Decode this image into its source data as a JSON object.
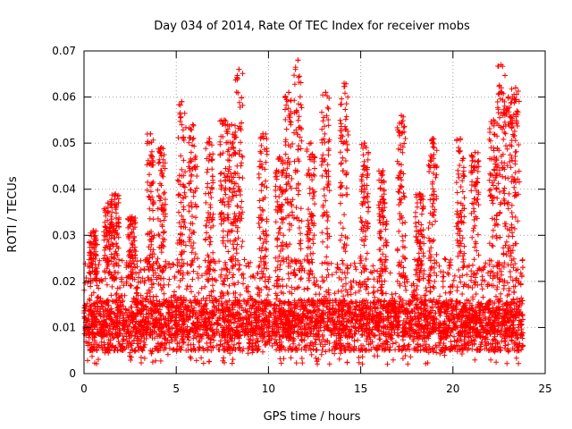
{
  "chart_data": {
    "type": "scatter",
    "title": "Day 034 of 2014, Rate Of TEC Index for receiver mobs",
    "xlabel": "GPS time / hours",
    "ylabel": "ROTI / TECUs",
    "xlim": [
      0,
      25
    ],
    "ylim": [
      0,
      0.07
    ],
    "xticks": [
      0,
      5,
      10,
      15,
      20,
      25
    ],
    "xtick_labels": [
      "0",
      "5",
      "10",
      "15",
      "20",
      "25"
    ],
    "yticks": [
      0,
      0.01,
      0.02,
      0.03,
      0.04,
      0.05,
      0.06,
      0.07
    ],
    "ytick_labels": [
      "0",
      "0.01",
      "0.02",
      "0.03",
      "0.04",
      "0.05",
      "0.06",
      "0.07"
    ],
    "grid": true,
    "marker": "+",
    "colors": {
      "series": "#ff0000",
      "grid": "#a0a0a0",
      "axis": "#000000"
    },
    "series": [
      {
        "name": "ROTI",
        "x_range": [
          0,
          23.8
        ],
        "baseline_range": [
          0.005,
          0.025
        ],
        "typical_value": 0.012,
        "spikes": [
          {
            "x": 0.5,
            "y": 0.031
          },
          {
            "x": 1.3,
            "y": 0.037
          },
          {
            "x": 1.7,
            "y": 0.039
          },
          {
            "x": 2.6,
            "y": 0.034
          },
          {
            "x": 3.6,
            "y": 0.052
          },
          {
            "x": 4.2,
            "y": 0.049
          },
          {
            "x": 5.3,
            "y": 0.059
          },
          {
            "x": 5.9,
            "y": 0.054
          },
          {
            "x": 6.8,
            "y": 0.051
          },
          {
            "x": 7.6,
            "y": 0.055
          },
          {
            "x": 8.0,
            "y": 0.054
          },
          {
            "x": 8.4,
            "y": 0.066
          },
          {
            "x": 9.7,
            "y": 0.052
          },
          {
            "x": 10.6,
            "y": 0.047
          },
          {
            "x": 11.1,
            "y": 0.061
          },
          {
            "x": 11.6,
            "y": 0.068
          },
          {
            "x": 12.3,
            "y": 0.05
          },
          {
            "x": 13.1,
            "y": 0.061
          },
          {
            "x": 14.1,
            "y": 0.063
          },
          {
            "x": 15.2,
            "y": 0.05
          },
          {
            "x": 16.2,
            "y": 0.044
          },
          {
            "x": 17.2,
            "y": 0.056
          },
          {
            "x": 18.2,
            "y": 0.039
          },
          {
            "x": 18.9,
            "y": 0.051
          },
          {
            "x": 20.4,
            "y": 0.051
          },
          {
            "x": 21.2,
            "y": 0.048
          },
          {
            "x": 22.2,
            "y": 0.055
          },
          {
            "x": 22.6,
            "y": 0.067
          },
          {
            "x": 23.0,
            "y": 0.06
          },
          {
            "x": 23.4,
            "y": 0.062
          }
        ]
      }
    ]
  }
}
